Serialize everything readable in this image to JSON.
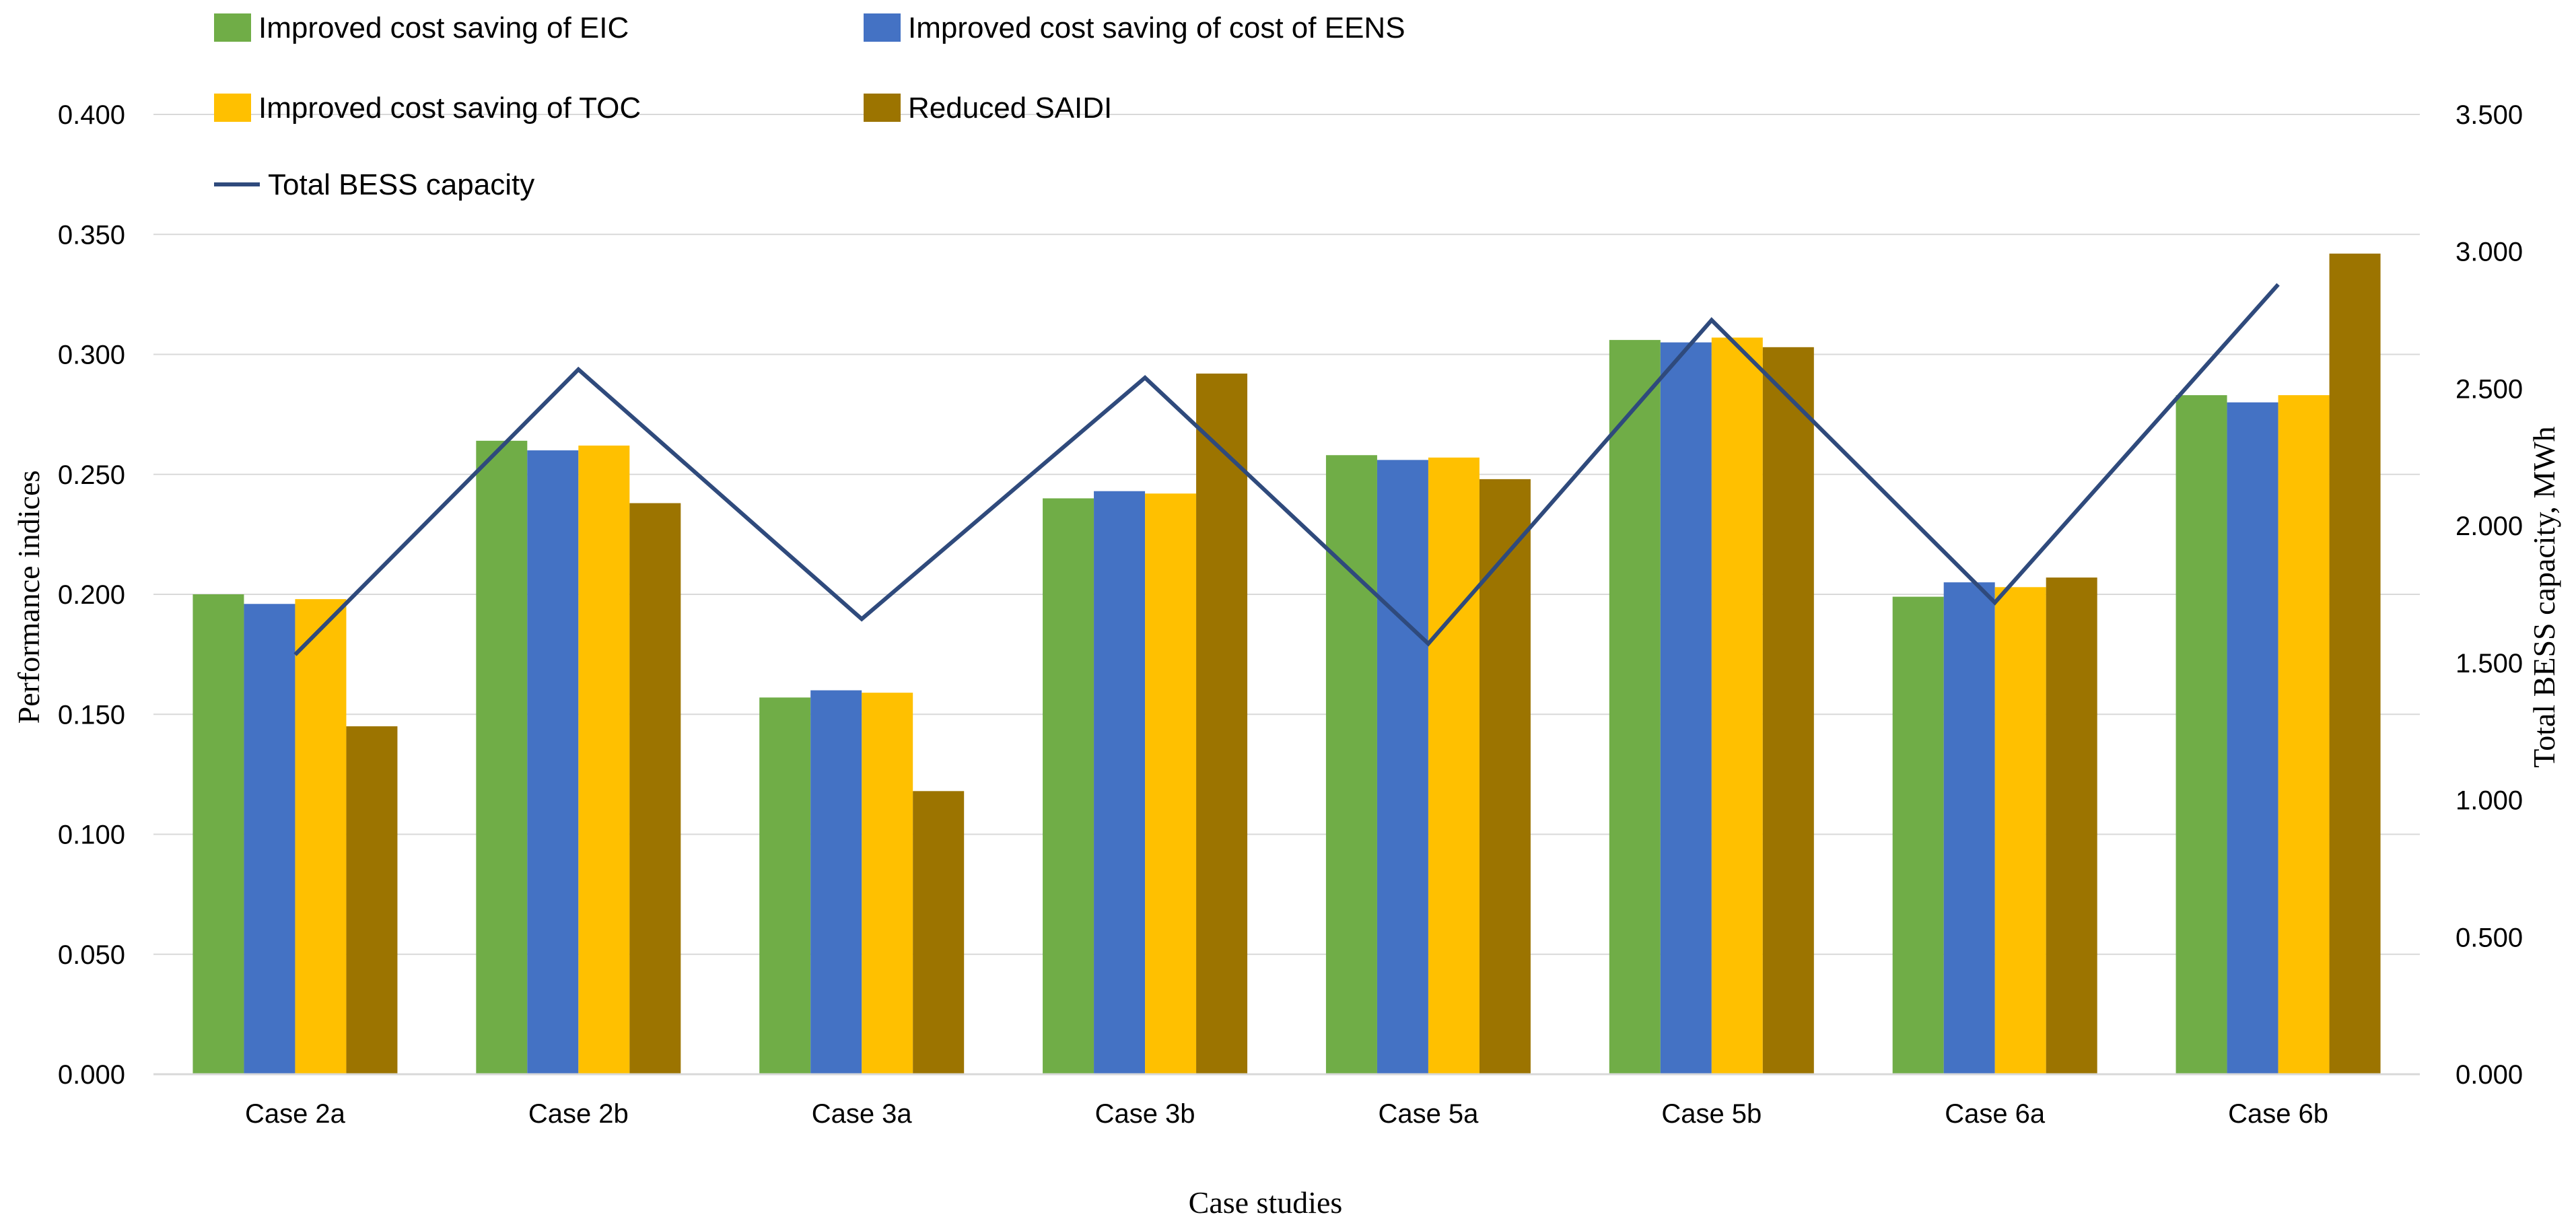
{
  "chart_data": {
    "type": "bar",
    "title": "",
    "xlabel": "Case studies",
    "ylabel": "Performance indices",
    "y2label": "Total BESS capacity, MWh",
    "ylim": [
      0,
      0.4
    ],
    "y2lim": [
      0,
      3.5
    ],
    "yticks": [
      "0.000",
      "0.050",
      "0.100",
      "0.150",
      "0.200",
      "0.250",
      "0.300",
      "0.350",
      "0.400"
    ],
    "y2ticks": [
      "0.000",
      "0.500",
      "1.000",
      "1.500",
      "2.000",
      "2.500",
      "3.000",
      "3.500"
    ],
    "grid": true,
    "legend_position": "top-left",
    "categories": [
      "Case 2a",
      "Case 2b",
      "Case 3a",
      "Case 3b",
      "Case 5a",
      "Case 5b",
      "Case 6a",
      "Case 6b"
    ],
    "series": [
      {
        "name": "Improved cost saving of EIC",
        "type": "bar",
        "axis": "left",
        "color": "#70AD47",
        "values": [
          0.2,
          0.264,
          0.157,
          0.24,
          0.258,
          0.306,
          0.199,
          0.283
        ]
      },
      {
        "name": "Improved cost saving of cost of EENS",
        "type": "bar",
        "axis": "left",
        "color": "#4472C4",
        "values": [
          0.196,
          0.26,
          0.16,
          0.243,
          0.256,
          0.305,
          0.205,
          0.28
        ]
      },
      {
        "name": "Improved cost saving of TOC",
        "type": "bar",
        "axis": "left",
        "color": "#FFC000",
        "values": [
          0.198,
          0.262,
          0.159,
          0.242,
          0.257,
          0.307,
          0.203,
          0.283
        ]
      },
      {
        "name": "Reduced SAIDI",
        "type": "bar",
        "axis": "left",
        "color": "#9C7400",
        "values": [
          0.145,
          0.238,
          0.118,
          0.292,
          0.248,
          0.303,
          0.207,
          0.342
        ]
      },
      {
        "name": "Total BESS capacity",
        "type": "line",
        "axis": "right",
        "color": "#2F4A7C",
        "values": [
          1.53,
          2.57,
          1.66,
          2.54,
          1.57,
          2.75,
          1.72,
          2.88
        ]
      }
    ]
  }
}
